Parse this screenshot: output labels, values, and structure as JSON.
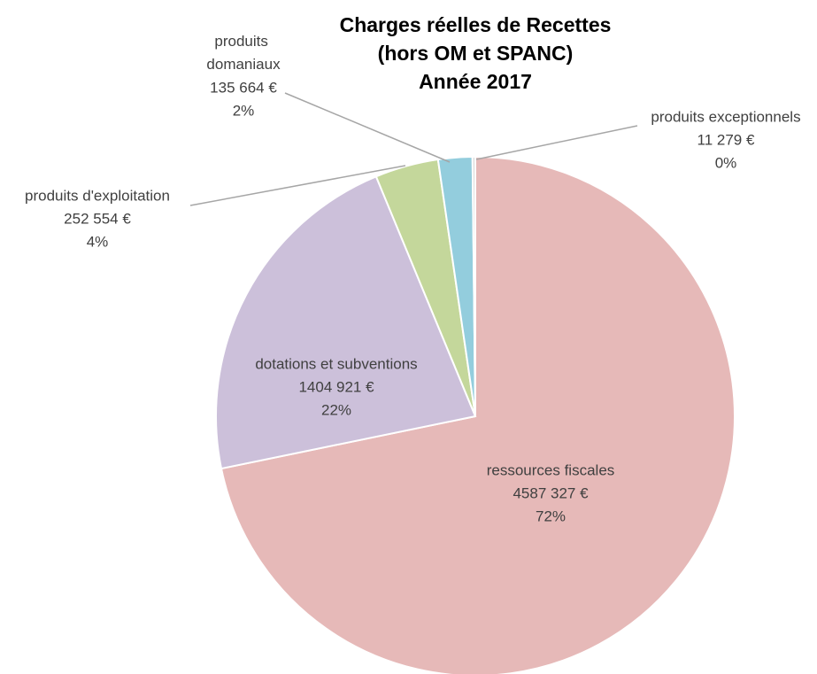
{
  "chart_data": {
    "type": "pie",
    "title": [
      "Charges réelles de Recettes",
      "(hors OM et SPANC)",
      "Année 2017"
    ],
    "categories": [
      "ressources fiscales",
      "dotations et subventions",
      "produits d'exploitation",
      "produits domaniaux",
      "produits exceptionnels"
    ],
    "values": [
      4587327,
      1404921,
      252554,
      135664,
      11279
    ],
    "value_labels": [
      "4587 327 €",
      "1404 921 €",
      "252 554 €",
      "135 664 €",
      "11 279 €"
    ],
    "percent_labels": [
      "72%",
      "22%",
      "4%",
      "2%",
      "0%"
    ],
    "colors": [
      "#e6b9b8",
      "#ccc0da",
      "#c4d79b",
      "#93cddd",
      "#d9d9d9"
    ]
  }
}
